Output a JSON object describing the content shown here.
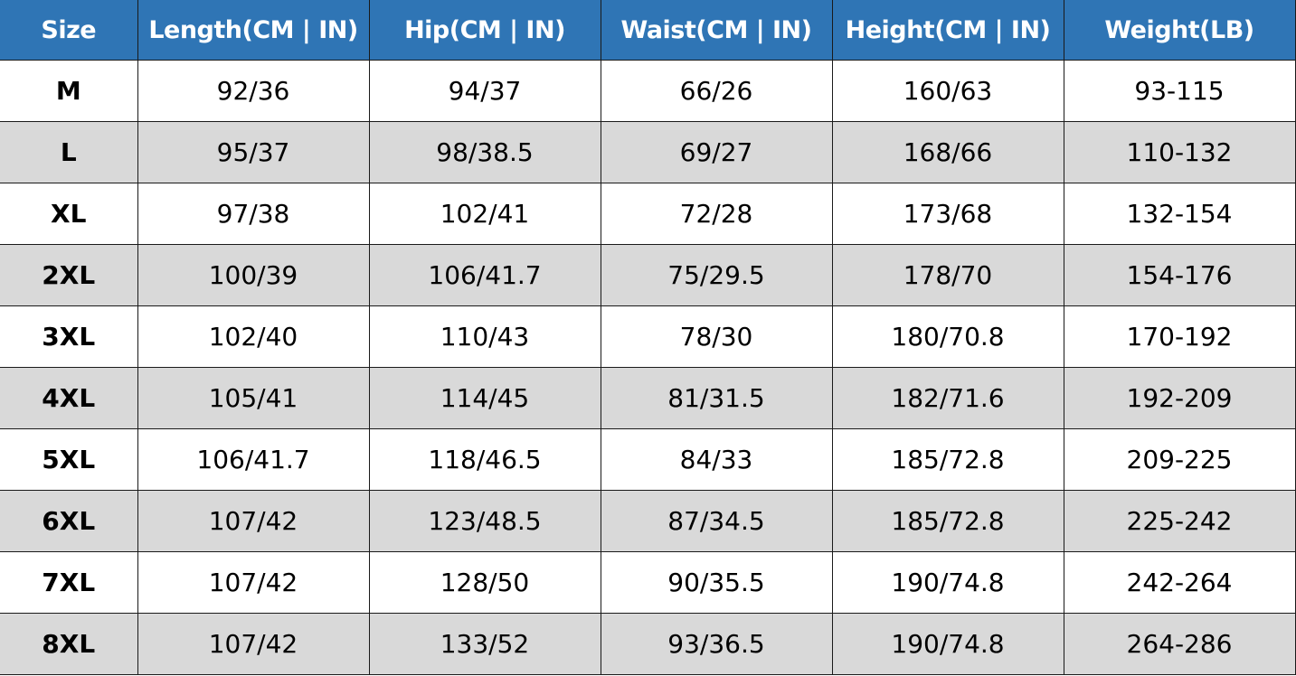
{
  "colors": {
    "header_bg": "#2F75B5",
    "alt_row_bg": "#D9D9D9"
  },
  "headers": [
    "Size",
    "Length(CM | IN)",
    "Hip(CM | IN)",
    "Waist(CM | IN)",
    "Height(CM | IN)",
    "Weight(LB)"
  ],
  "rows": [
    [
      "M",
      "92/36",
      "94/37",
      "66/26",
      "160/63",
      "93-115"
    ],
    [
      "L",
      "95/37",
      "98/38.5",
      "69/27",
      "168/66",
      "110-132"
    ],
    [
      "XL",
      "97/38",
      "102/41",
      "72/28",
      "173/68",
      "132-154"
    ],
    [
      "2XL",
      "100/39",
      "106/41.7",
      "75/29.5",
      "178/70",
      "154-176"
    ],
    [
      "3XL",
      "102/40",
      "110/43",
      "78/30",
      "180/70.8",
      "170-192"
    ],
    [
      "4XL",
      "105/41",
      "114/45",
      "81/31.5",
      "182/71.6",
      "192-209"
    ],
    [
      "5XL",
      "106/41.7",
      "118/46.5",
      "84/33",
      "185/72.8",
      "209-225"
    ],
    [
      "6XL",
      "107/42",
      "123/48.5",
      "87/34.5",
      "185/72.8",
      "225-242"
    ],
    [
      "7XL",
      "107/42",
      "128/50",
      "90/35.5",
      "190/74.8",
      "242-264"
    ],
    [
      "8XL",
      "107/42",
      "133/52",
      "93/36.5",
      "190/74.8",
      "264-286"
    ]
  ]
}
